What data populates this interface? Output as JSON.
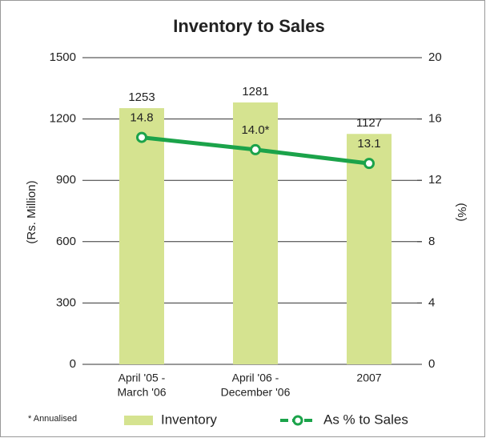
{
  "chart_data": {
    "type": "bar",
    "title": "Inventory to Sales",
    "ylabel": "(Rs. Million)",
    "y2label": "(%)",
    "footnote": "* Annualised",
    "categories": [
      [
        "April '05 -",
        "March '06"
      ],
      [
        "April '06 -",
        "December '06"
      ],
      [
        "2007"
      ]
    ],
    "series": [
      {
        "name": "Inventory",
        "type": "bar",
        "color": "#d5e390",
        "values": [
          1253,
          1281,
          1127
        ]
      },
      {
        "name": "As % to Sales",
        "type": "line",
        "axis": "y2",
        "color": "#1ba34a",
        "values": [
          14.8,
          14.0,
          13.1
        ],
        "value_labels": [
          "14.8",
          "14.0*",
          "13.1"
        ]
      }
    ],
    "ylim": [
      0,
      1500
    ],
    "yticks": [
      0,
      300,
      600,
      900,
      1200,
      1500
    ],
    "y2lim": [
      0,
      20
    ],
    "y2ticks": [
      0,
      4,
      8,
      12,
      16,
      20
    ],
    "grid": true
  }
}
